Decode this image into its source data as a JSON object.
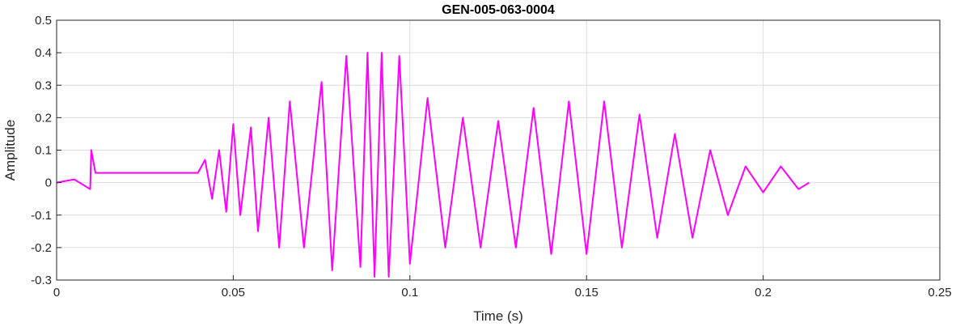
{
  "chart_data": {
    "type": "line",
    "title": "GEN-005-063-0004",
    "xlabel": "Time (s)",
    "ylabel": "Amplitude",
    "xlim": [
      0,
      0.25
    ],
    "ylim": [
      -0.3,
      0.5
    ],
    "xticks": [
      0,
      0.05,
      0.1,
      0.15,
      0.2,
      0.25
    ],
    "xtick_labels": [
      "0",
      "0.05",
      "0.1",
      "0.15",
      "0.2",
      "0.25"
    ],
    "yticks": [
      -0.3,
      -0.2,
      -0.1,
      0,
      0.1,
      0.2,
      0.3,
      0.4,
      0.5
    ],
    "ytick_labels": [
      "-0.3",
      "-0.2",
      "-0.1",
      "0",
      "0.1",
      "0.2",
      "0.3",
      "0.4",
      "0.5"
    ],
    "grid": true,
    "line_color": "#ff00ff",
    "series": [
      {
        "x": [
          0,
          0.005,
          0.0095,
          0.0098,
          0.011,
          0.02,
          0.03,
          0.04,
          0.042,
          0.044,
          0.046,
          0.048,
          0.05,
          0.052,
          0.055,
          0.057,
          0.06,
          0.063,
          0.066,
          0.07,
          0.075,
          0.078,
          0.082,
          0.086,
          0.088,
          0.09,
          0.092,
          0.094,
          0.097,
          0.1,
          0.105,
          0.11,
          0.115,
          0.12,
          0.125,
          0.13,
          0.135,
          0.14,
          0.145,
          0.15,
          0.155,
          0.16,
          0.165,
          0.17,
          0.175,
          0.18,
          0.185,
          0.19,
          0.195,
          0.2,
          0.205,
          0.21,
          0.213
        ],
        "y": [
          0.0,
          0.01,
          -0.02,
          0.1,
          0.03,
          0.03,
          0.03,
          0.03,
          0.07,
          -0.05,
          0.1,
          -0.09,
          0.18,
          -0.1,
          0.17,
          -0.15,
          0.2,
          -0.2,
          0.25,
          -0.2,
          0.31,
          -0.27,
          0.39,
          -0.26,
          0.4,
          -0.29,
          0.4,
          -0.29,
          0.39,
          -0.25,
          0.26,
          -0.2,
          0.2,
          -0.2,
          0.19,
          -0.2,
          0.23,
          -0.22,
          0.25,
          -0.22,
          0.25,
          -0.2,
          0.21,
          -0.17,
          0.15,
          -0.17,
          0.1,
          -0.1,
          0.05,
          -0.03,
          0.05,
          -0.02,
          0.0
        ]
      }
    ]
  }
}
